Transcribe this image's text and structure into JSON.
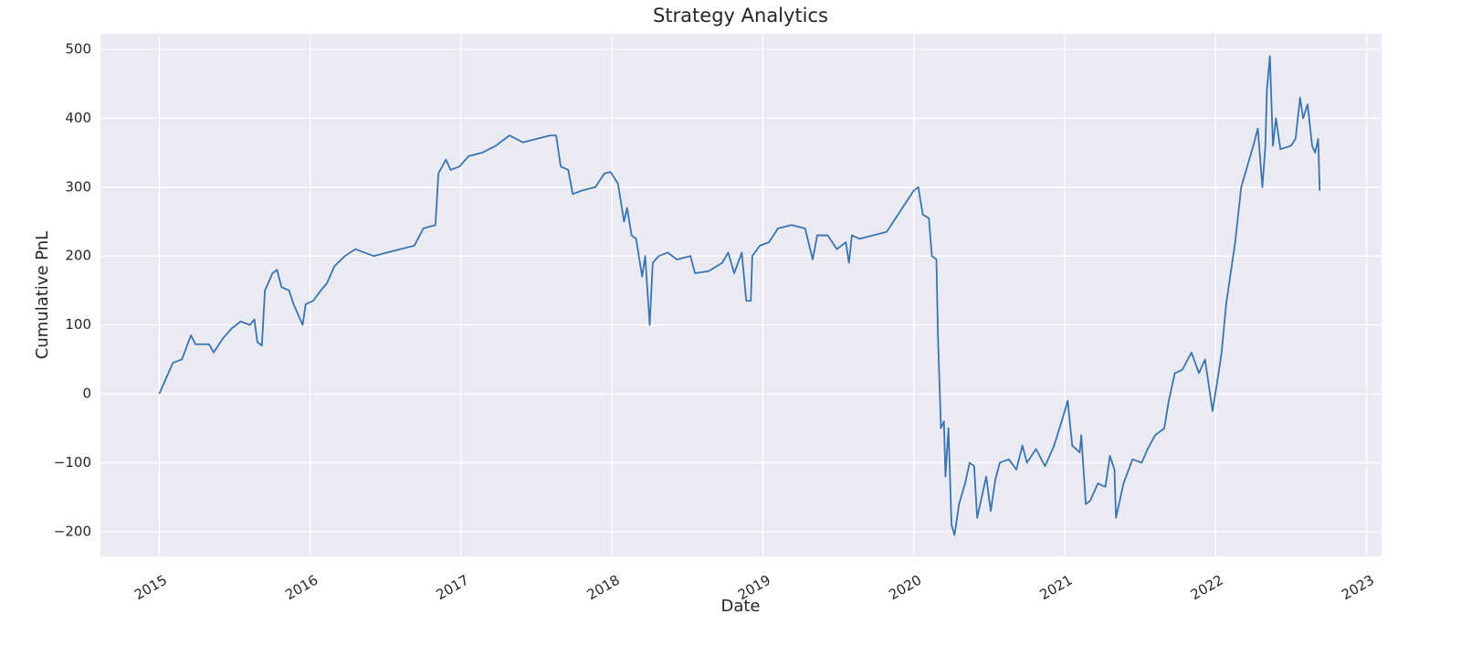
{
  "chart_data": {
    "type": "line",
    "title": "Strategy Analytics",
    "x_label": "Date",
    "y_label": "Cumulative PnL",
    "color": "#3a74b0",
    "grid": true,
    "xlim": [
      2014.61,
      2023.1
    ],
    "ylim": [
      -236,
      522.5
    ],
    "xticks": [
      2015,
      2016,
      2017,
      2018,
      2019,
      2020,
      2021,
      2022,
      2023
    ],
    "yticks": [
      {
        "value": -200,
        "label": "−200"
      },
      {
        "value": -100,
        "label": "−100"
      },
      0,
      100,
      200,
      300,
      400,
      500
    ],
    "x": [
      2015.0,
      2015.03,
      2015.09,
      2015.15,
      2015.21,
      2015.24,
      2015.33,
      2015.36,
      2015.42,
      2015.48,
      2015.54,
      2015.6,
      2015.63,
      2015.65,
      2015.68,
      2015.7,
      2015.75,
      2015.78,
      2015.81,
      2015.86,
      2015.89,
      2015.93,
      2015.95,
      2015.97,
      2016.02,
      2016.07,
      2016.11,
      2016.16,
      2016.23,
      2016.3,
      2016.36,
      2016.42,
      2016.51,
      2016.6,
      2016.69,
      2016.75,
      2016.83,
      2016.85,
      2016.9,
      2016.93,
      2016.99,
      2017.05,
      2017.14,
      2017.23,
      2017.32,
      2017.41,
      2017.5,
      2017.59,
      2017.63,
      2017.66,
      2017.71,
      2017.74,
      2017.8,
      2017.89,
      2017.95,
      2017.99,
      2018.04,
      2018.08,
      2018.1,
      2018.13,
      2018.16,
      2018.2,
      2018.22,
      2018.25,
      2018.27,
      2018.31,
      2018.37,
      2018.43,
      2018.52,
      2018.55,
      2018.64,
      2018.73,
      2018.77,
      2018.81,
      2018.86,
      2018.89,
      2018.92,
      2018.93,
      2018.98,
      2019.04,
      2019.1,
      2019.19,
      2019.28,
      2019.33,
      2019.36,
      2019.43,
      2019.49,
      2019.55,
      2019.57,
      2019.59,
      2019.64,
      2019.73,
      2019.82,
      2019.88,
      2019.94,
      2020.0,
      2020.03,
      2020.06,
      2020.1,
      2020.12,
      2020.15,
      2020.16,
      2020.18,
      2020.2,
      2020.21,
      2020.23,
      2020.25,
      2020.27,
      2020.3,
      2020.34,
      2020.37,
      2020.4,
      2020.42,
      2020.45,
      2020.48,
      2020.51,
      2020.54,
      2020.57,
      2020.63,
      2020.68,
      2020.72,
      2020.75,
      2020.81,
      2020.87,
      2020.93,
      2020.98,
      2021.02,
      2021.05,
      2021.1,
      2021.11,
      2021.14,
      2021.17,
      2021.22,
      2021.27,
      2021.3,
      2021.33,
      2021.34,
      2021.39,
      2021.45,
      2021.51,
      2021.55,
      2021.6,
      2021.66,
      2021.69,
      2021.73,
      2021.78,
      2021.84,
      2021.89,
      2021.93,
      2021.96,
      2021.98,
      2022.02,
      2022.04,
      2022.07,
      2022.09,
      2022.13,
      2022.15,
      2022.17,
      2022.21,
      2022.25,
      2022.28,
      2022.31,
      2022.33,
      2022.34,
      2022.36,
      2022.38,
      2022.4,
      2022.43,
      2022.5,
      2022.53,
      2022.56,
      2022.58,
      2022.61,
      2022.64,
      2022.66,
      2022.68,
      2022.69
    ],
    "values": [
      0,
      15,
      45,
      50,
      85,
      72,
      72,
      60,
      80,
      95,
      105,
      100,
      108,
      75,
      70,
      150,
      175,
      180,
      155,
      150,
      130,
      110,
      100,
      130,
      135,
      150,
      160,
      185,
      200,
      210,
      205,
      200,
      205,
      210,
      215,
      240,
      245,
      320,
      340,
      325,
      330,
      345,
      350,
      360,
      375,
      365,
      370,
      375,
      375,
      330,
      325,
      290,
      295,
      300,
      320,
      322,
      305,
      250,
      270,
      230,
      225,
      170,
      200,
      100,
      190,
      200,
      205,
      195,
      200,
      175,
      178,
      190,
      205,
      175,
      205,
      135,
      135,
      200,
      215,
      220,
      240,
      245,
      240,
      195,
      230,
      230,
      210,
      220,
      190,
      230,
      225,
      230,
      235,
      255,
      275,
      295,
      300,
      260,
      255,
      200,
      195,
      85,
      -50,
      -40,
      -120,
      -50,
      -190,
      -205,
      -160,
      -130,
      -100,
      -105,
      -180,
      -150,
      -120,
      -170,
      -125,
      -100,
      -95,
      -110,
      -75,
      -100,
      -80,
      -105,
      -75,
      -40,
      -10,
      -75,
      -85,
      -60,
      -160,
      -155,
      -130,
      -135,
      -90,
      -110,
      -180,
      -130,
      -95,
      -100,
      -80,
      -60,
      -50,
      -10,
      30,
      35,
      60,
      30,
      50,
      5,
      -25,
      30,
      60,
      130,
      160,
      220,
      260,
      300,
      330,
      360,
      385,
      300,
      360,
      440,
      490,
      360,
      400,
      355,
      360,
      370,
      430,
      400,
      420,
      360,
      350,
      370,
      295
    ]
  }
}
